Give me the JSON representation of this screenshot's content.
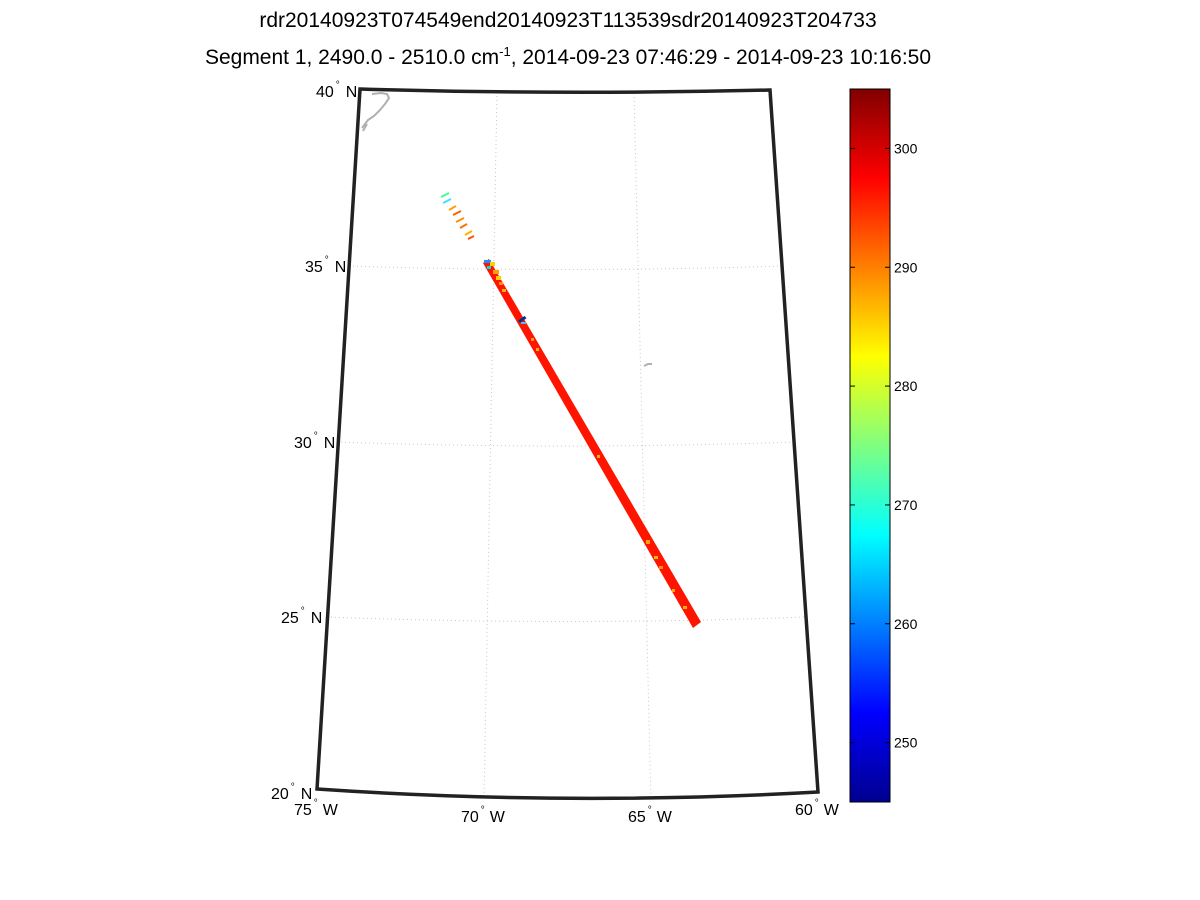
{
  "header": {
    "title_line1": "rdr20140923T074549end20140923T113539sdr20140923T204733",
    "title_line2_prefix": "Segment 1, 2490.0 - 2510.0 cm",
    "title_line2_exp": "-1",
    "title_line2_suffix": ", 2014-09-23 07:46:29 - 2014-09-23 10:16:50"
  },
  "map": {
    "lat_ticks": [
      {
        "value": "40",
        "hemi": "N"
      },
      {
        "value": "35",
        "hemi": "N"
      },
      {
        "value": "30",
        "hemi": "N"
      },
      {
        "value": "25",
        "hemi": "N"
      },
      {
        "value": "20",
        "hemi": "N"
      }
    ],
    "lon_ticks": [
      {
        "value": "75",
        "hemi": "W"
      },
      {
        "value": "70",
        "hemi": "W"
      },
      {
        "value": "65",
        "hemi": "W"
      },
      {
        "value": "60",
        "hemi": "W"
      }
    ],
    "degree_symbol": "°"
  },
  "colorbar": {
    "min": 245,
    "max": 305,
    "ticks": [
      "300",
      "290",
      "280",
      "270",
      "260",
      "250"
    ],
    "colormap": "jet"
  },
  "colors": {
    "swath_main": "#ff1400",
    "coast": "#b0b0b0",
    "grid": "#c8c8c8"
  }
}
